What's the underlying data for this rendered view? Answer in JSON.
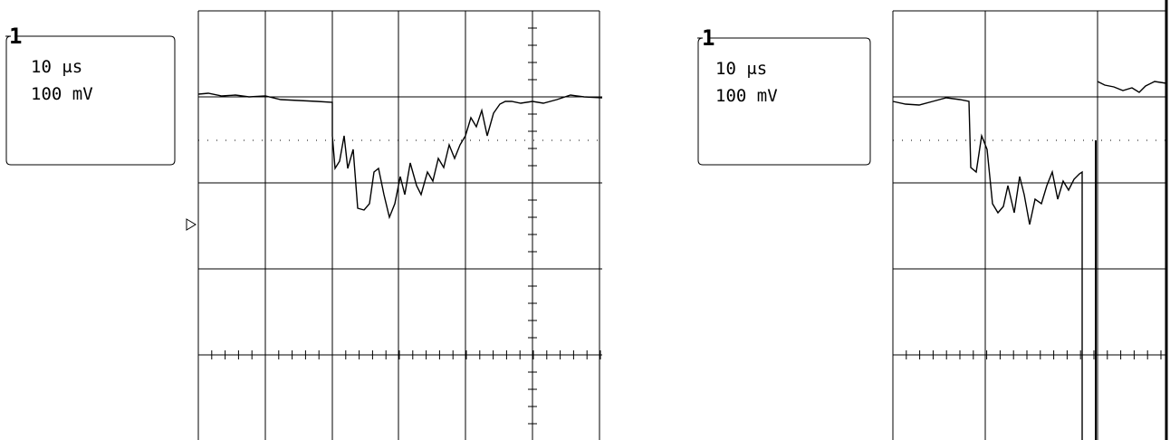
{
  "panels": [
    {
      "channel": "1",
      "timebase": "10 μs",
      "scale": "100 mV"
    },
    {
      "channel": "1",
      "timebase": "10 μs",
      "scale": "100 mV"
    }
  ]
}
